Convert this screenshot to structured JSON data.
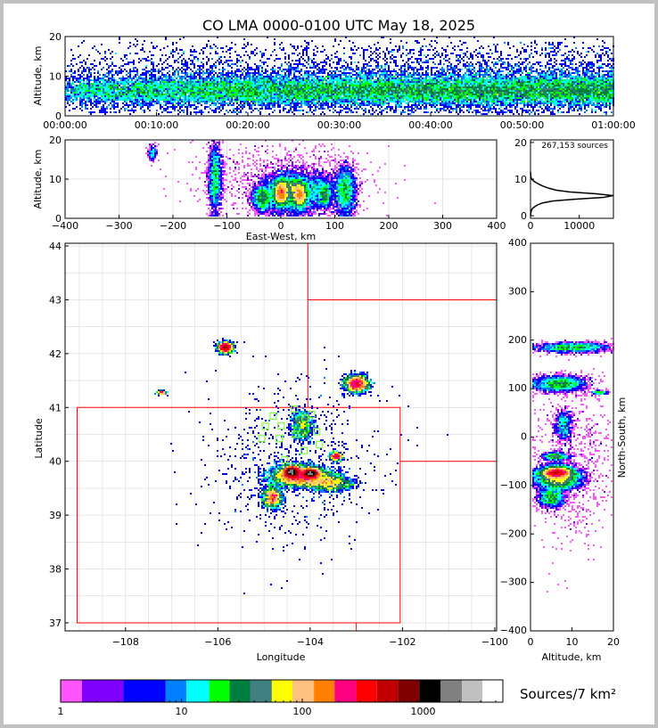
{
  "title": "CO LMA 0000-0100 UTC May 18, 2025",
  "chart_data": {
    "type": "heatmap",
    "title": "CO LMA 0000-0100 UTC May 18, 2025",
    "source_count_label": "267,153 sources",
    "total_sources": 267153,
    "network_center": {
      "lon": -104.4,
      "lat": 40.45
    },
    "colorbar": {
      "label": "Sources/7 km²",
      "ticks": [
        1,
        10,
        100,
        1000
      ],
      "tick_labels": [
        "1",
        "10",
        "100",
        "1000"
      ],
      "bounds": [
        1,
        1.5,
        3.3,
        7.4,
        11,
        17,
        25,
        37,
        56,
        83,
        125,
        185,
        280,
        415,
        620,
        930,
        1400,
        2100,
        3100,
        4600
      ],
      "colors": [
        "#ff55ff",
        "#8000ff",
        "#0000ff",
        "#0080ff",
        "#00ffff",
        "#00ff00",
        "#008040",
        "#408080",
        "#ffff00",
        "#ffc080",
        "#ff8000",
        "#ff0080",
        "#ff0000",
        "#c00000",
        "#800000",
        "#000000",
        "#808080",
        "#c0c0c0",
        "#ffffff"
      ]
    },
    "panels": {
      "time_height": {
        "ylabel": "Altitude, km",
        "ylim": [
          0,
          20
        ],
        "yticks": [
          0,
          10,
          20
        ],
        "xlim_minutes": [
          0,
          60
        ],
        "xtick_labels": [
          "00:00:00",
          "00:10:00",
          "00:20:00",
          "00:30:00",
          "00:40:00",
          "00:50:00",
          "01:00:00"
        ]
      },
      "ew_height": {
        "xlabel": "East-West, km",
        "ylabel": "Altitude, km",
        "xlim": [
          -400,
          400
        ],
        "xticks": [
          -400,
          -300,
          -200,
          -100,
          0,
          100,
          200,
          300,
          400
        ],
        "ylim": [
          0,
          20
        ],
        "yticks": [
          0,
          10,
          20
        ]
      },
      "alt_hist": {
        "xlim": [
          0,
          17000
        ],
        "xticks": [
          0,
          10000
        ],
        "ylim": [
          -0.7,
          20.7
        ],
        "yticks": [
          0,
          10,
          20
        ],
        "altitude_km": [
          0,
          1,
          1.5,
          2,
          2.5,
          3,
          3.5,
          4,
          4.5,
          5,
          5.5,
          6,
          6.5,
          7,
          7.5,
          8,
          8.5,
          9,
          9.5,
          10,
          10.5,
          11,
          12
        ],
        "counts": [
          0,
          100,
          200,
          400,
          900,
          1500,
          2500,
          4500,
          9000,
          15000,
          16900,
          13500,
          8000,
          5200,
          3800,
          2700,
          1900,
          1200,
          600,
          250,
          100,
          40,
          0
        ]
      },
      "plan": {
        "xlabel": "Longitude",
        "ylabel": "Latitude",
        "xlim": [
          -109.31,
          -99.96
        ],
        "ylim": [
          36.85,
          44.05
        ],
        "xticks": [
          -108,
          -106,
          -104,
          -102,
          -100
        ],
        "yticks": [
          37,
          38,
          39,
          40,
          41,
          42,
          43,
          44
        ],
        "state_borders": [
          [
            [
              -109.05,
              41.0
            ],
            [
              -102.05,
              41.0
            ],
            [
              -102.05,
              37.0
            ],
            [
              -109.05,
              37.0
            ],
            [
              -109.05,
              41.0
            ]
          ],
          [
            [
              -104.05,
              44.05
            ],
            [
              -104.05,
              41.0
            ]
          ],
          [
            [
              -104.05,
              43.0
            ],
            [
              -99.96,
              43.0
            ]
          ],
          [
            [
              -102.05,
              40.0
            ],
            [
              -99.96,
              40.0
            ]
          ],
          [
            [
              -103.0,
              37.0
            ],
            [
              -103.0,
              36.85
            ]
          ]
        ],
        "stations": [
          [
            -104.8,
            40.84
          ],
          [
            -104.34,
            40.97
          ],
          [
            -103.97,
            40.87
          ],
          [
            -104.97,
            40.65
          ],
          [
            -104.63,
            40.66
          ],
          [
            -104.11,
            40.8
          ],
          [
            -105.05,
            40.42
          ],
          [
            -104.67,
            40.42
          ],
          [
            -104.32,
            40.5
          ],
          [
            -103.86,
            40.55
          ],
          [
            -104.13,
            40.2
          ],
          [
            -103.8,
            40.31
          ],
          [
            -104.55,
            40.03
          ]
        ]
      },
      "ns_height": {
        "xlabel": "Altitude, km",
        "ylabel": "North-South, km",
        "xlim": [
          0,
          20
        ],
        "xticks": [
          0,
          10,
          20
        ],
        "ylim": [
          -400,
          400
        ],
        "yticks": [
          -400,
          -300,
          -200,
          -100,
          0,
          100,
          200,
          300,
          400
        ]
      }
    },
    "source_clusters": [
      {
        "x_km": 0,
        "y_km": -72,
        "sx": 6,
        "sy": 5,
        "alt_km": 6.5,
        "salt": 1.5,
        "n": 5000
      },
      {
        "x_km": 35,
        "y_km": -75,
        "sx": 6,
        "sy": 4,
        "alt_km": 6,
        "salt": 1.5,
        "n": 4000
      },
      {
        "x_km": 15,
        "y_km": -80,
        "sx": 25,
        "sy": 10,
        "alt_km": 6.5,
        "salt": 2.5,
        "n": 6000
      },
      {
        "x_km": -35,
        "y_km": -125,
        "sx": 8,
        "sy": 10,
        "alt_km": 5,
        "salt": 1.5,
        "n": 1500
      },
      {
        "x_km": 70,
        "y_km": -95,
        "sx": 20,
        "sy": 8,
        "alt_km": 7,
        "salt": 2.5,
        "n": 1500
      },
      {
        "x_km": 20,
        "y_km": 25,
        "sx": 10,
        "sy": 15,
        "alt_km": 8,
        "salt": 1,
        "n": 800
      },
      {
        "x_km": -122,
        "y_km": 185,
        "sx": 6,
        "sy": 5,
        "alt_km": 10,
        "salt": 4,
        "n": 2000
      },
      {
        "x_km": -238,
        "y_km": 92,
        "sx": 4,
        "sy": 2,
        "alt_km": 16.5,
        "salt": 1,
        "n": 200
      },
      {
        "x_km": 120,
        "y_km": 110,
        "sx": 10,
        "sy": 8,
        "alt_km": 7,
        "salt": 3,
        "n": 2500
      },
      {
        "x_km": 82,
        "y_km": -40,
        "sx": 5,
        "sy": 4,
        "alt_km": 6,
        "salt": 1.5,
        "n": 800
      },
      {
        "x_km": 0,
        "y_km": -60,
        "sx": 80,
        "sy": 80,
        "alt_km": 10,
        "salt": 5,
        "n": 800
      }
    ]
  }
}
